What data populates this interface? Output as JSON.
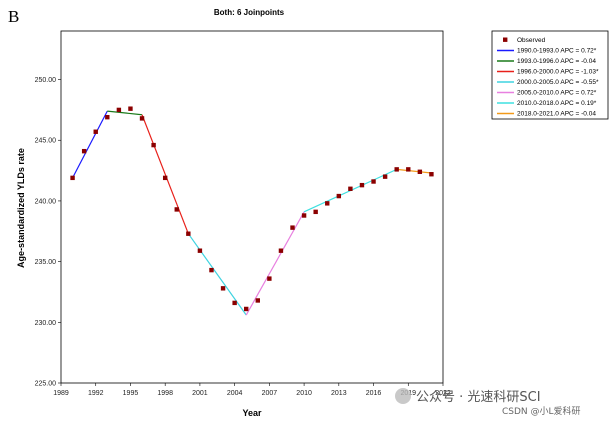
{
  "panel_label": "B",
  "watermark": {
    "line1": "公众号 · 光速科研SCI",
    "line2": "CSDN @小L爱科研"
  },
  "chart_data": {
    "type": "line",
    "title": "Both: 6 Joinpoints",
    "xlabel": "Year",
    "ylabel": "Age-standardized YLDs rate",
    "xlim": [
      1989,
      2022
    ],
    "ylim": [
      225,
      254
    ],
    "x_ticks": [
      "1989",
      "1992",
      "1995",
      "1998",
      "2001",
      "2004",
      "2007",
      "2010",
      "2013",
      "2016",
      "2019",
      "2022"
    ],
    "y_ticks": [
      "225.00",
      "230.00",
      "235.00",
      "240.00",
      "245.00",
      "250.00"
    ],
    "legend_position": "right-outside-top",
    "observed": {
      "name": "Observed",
      "color": "#8b0000",
      "x": [
        1990,
        1991,
        1992,
        1993,
        1994,
        1995,
        1996,
        1997,
        1998,
        1999,
        2000,
        2001,
        2002,
        2003,
        2004,
        2005,
        2006,
        2007,
        2008,
        2009,
        2010,
        2011,
        2012,
        2013,
        2014,
        2015,
        2016,
        2017,
        2018,
        2019,
        2020,
        2021
      ],
      "y": [
        241.9,
        244.1,
        245.7,
        246.9,
        247.5,
        247.6,
        246.8,
        244.6,
        241.9,
        239.3,
        237.3,
        235.9,
        234.3,
        232.8,
        231.6,
        231.1,
        231.8,
        233.6,
        235.9,
        237.8,
        238.8,
        239.1,
        239.8,
        240.4,
        241.0,
        241.3,
        241.6,
        242.0,
        242.6,
        242.6,
        242.4,
        242.2
      ]
    },
    "series": [
      {
        "name": "1990.0-1993.0 APC =  0.72*",
        "color": "#1a1aff",
        "x": [
          1990,
          1993
        ],
        "y": [
          241.9,
          247.4
        ]
      },
      {
        "name": "1993.0-1996.0 APC = -0.04",
        "color": "#1a7a1a",
        "x": [
          1993,
          1996
        ],
        "y": [
          247.4,
          247.1
        ]
      },
      {
        "name": "1996.0-2000.0 APC = -1.03*",
        "color": "#e8201a",
        "x": [
          1996,
          2000
        ],
        "y": [
          247.1,
          237.3
        ]
      },
      {
        "name": "2000.0-2005.0 APC = -0.55*",
        "color": "#3fd3e0",
        "x": [
          2000,
          2005
        ],
        "y": [
          237.3,
          230.6
        ]
      },
      {
        "name": "2005.0-2010.0 APC =  0.72*",
        "color": "#e880e0",
        "x": [
          2005,
          2010
        ],
        "y": [
          230.6,
          239.1
        ]
      },
      {
        "name": "2010.0-2018.0 APC =  0.19*",
        "color": "#3fe0e0",
        "x": [
          2010,
          2018
        ],
        "y": [
          239.1,
          242.6
        ]
      },
      {
        "name": "2018.0-2021.0 APC = -0.04",
        "color": "#f29a1a",
        "x": [
          2018,
          2021
        ],
        "y": [
          242.6,
          242.3
        ]
      }
    ]
  }
}
